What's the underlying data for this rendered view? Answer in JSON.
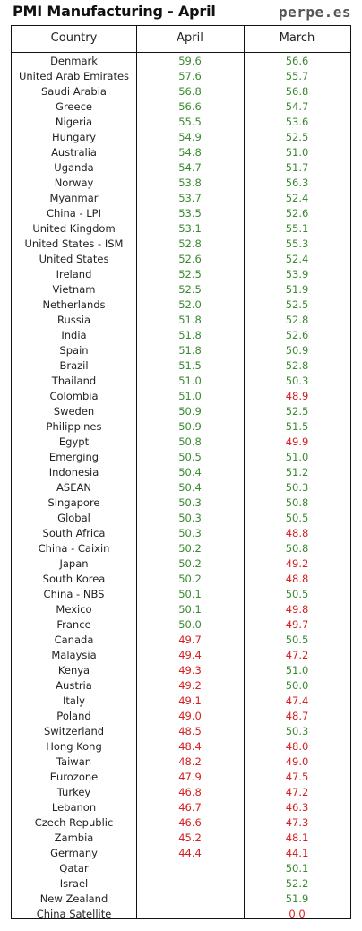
{
  "title": "PMI Manufacturing - April",
  "brand": "perpe.es",
  "colors": {
    "expansion": "#3a8a30",
    "contraction": "#d42020"
  },
  "headers": {
    "country": "Country",
    "april": "April",
    "march": "March"
  },
  "rows": [
    {
      "country": "Denmark",
      "april": "59.6",
      "march": "56.6"
    },
    {
      "country": "United Arab Emirates",
      "april": "57.6",
      "march": "55.7"
    },
    {
      "country": "Saudi Arabia",
      "april": "56.8",
      "march": "56.8"
    },
    {
      "country": "Greece",
      "april": "56.6",
      "march": "54.7"
    },
    {
      "country": "Nigeria",
      "april": "55.5",
      "march": "53.6"
    },
    {
      "country": "Hungary",
      "april": "54.9",
      "march": "52.5"
    },
    {
      "country": "Australia",
      "april": "54.8",
      "march": "51.0"
    },
    {
      "country": "Uganda",
      "april": "54.7",
      "march": "51.7"
    },
    {
      "country": "Norway",
      "april": "53.8",
      "march": "56.3"
    },
    {
      "country": "Myanmar",
      "april": "53.7",
      "march": "52.4"
    },
    {
      "country": "China - LPI",
      "april": "53.5",
      "march": "52.6"
    },
    {
      "country": "United Kingdom",
      "april": "53.1",
      "march": "55.1"
    },
    {
      "country": "United States - ISM",
      "april": "52.8",
      "march": "55.3"
    },
    {
      "country": "United States",
      "april": "52.6",
      "march": "52.4"
    },
    {
      "country": "Ireland",
      "april": "52.5",
      "march": "53.9"
    },
    {
      "country": "Vietnam",
      "april": "52.5",
      "march": "51.9"
    },
    {
      "country": "Netherlands",
      "april": "52.0",
      "march": "52.5"
    },
    {
      "country": "Russia",
      "april": "51.8",
      "march": "52.8"
    },
    {
      "country": "India",
      "april": "51.8",
      "march": "52.6"
    },
    {
      "country": "Spain",
      "april": "51.8",
      "march": "50.9"
    },
    {
      "country": "Brazil",
      "april": "51.5",
      "march": "52.8"
    },
    {
      "country": "Thailand",
      "april": "51.0",
      "march": "50.3"
    },
    {
      "country": "Colombia",
      "april": "51.0",
      "march": "48.9"
    },
    {
      "country": "Sweden",
      "april": "50.9",
      "march": "52.5"
    },
    {
      "country": "Philippines",
      "april": "50.9",
      "march": "51.5"
    },
    {
      "country": "Egypt",
      "april": "50.8",
      "march": "49.9"
    },
    {
      "country": "Emerging",
      "april": "50.5",
      "march": "51.0"
    },
    {
      "country": "Indonesia",
      "april": "50.4",
      "march": "51.2"
    },
    {
      "country": "ASEAN",
      "april": "50.4",
      "march": "50.3"
    },
    {
      "country": "Singapore",
      "april": "50.3",
      "march": "50.8"
    },
    {
      "country": "Global",
      "april": "50.3",
      "march": "50.5"
    },
    {
      "country": "South Africa",
      "april": "50.3",
      "march": "48.8"
    },
    {
      "country": "China - Caixin",
      "april": "50.2",
      "march": "50.8"
    },
    {
      "country": "Japan",
      "april": "50.2",
      "march": "49.2"
    },
    {
      "country": "South Korea",
      "april": "50.2",
      "march": "48.8"
    },
    {
      "country": "China - NBS",
      "april": "50.1",
      "march": "50.5"
    },
    {
      "country": "Mexico",
      "april": "50.1",
      "march": "49.8"
    },
    {
      "country": "France",
      "april": "50.0",
      "march": "49.7"
    },
    {
      "country": "Canada",
      "april": "49.7",
      "march": "50.5"
    },
    {
      "country": "Malaysia",
      "april": "49.4",
      "march": "47.2"
    },
    {
      "country": "Kenya",
      "april": "49.3",
      "march": "51.0"
    },
    {
      "country": "Austria",
      "april": "49.2",
      "march": "50.0"
    },
    {
      "country": "Italy",
      "april": "49.1",
      "march": "47.4"
    },
    {
      "country": "Poland",
      "april": "49.0",
      "march": "48.7"
    },
    {
      "country": "Switzerland",
      "april": "48.5",
      "march": "50.3"
    },
    {
      "country": "Hong Kong",
      "april": "48.4",
      "march": "48.0"
    },
    {
      "country": "Taiwan",
      "april": "48.2",
      "march": "49.0"
    },
    {
      "country": "Eurozone",
      "april": "47.9",
      "march": "47.5"
    },
    {
      "country": "Turkey",
      "april": "46.8",
      "march": "47.2"
    },
    {
      "country": "Lebanon",
      "april": "46.7",
      "march": "46.3"
    },
    {
      "country": "Czech Republic",
      "april": "46.6",
      "march": "47.3"
    },
    {
      "country": "Zambia",
      "april": "45.2",
      "march": "48.1"
    },
    {
      "country": "Germany",
      "april": "44.4",
      "march": "44.1"
    },
    {
      "country": "Qatar",
      "april": "",
      "march": "50.1"
    },
    {
      "country": "Israel",
      "april": "",
      "march": "52.2"
    },
    {
      "country": "New Zealand",
      "april": "",
      "march": "51.9"
    },
    {
      "country": "China Satellite",
      "april": "",
      "march": "0.0"
    }
  ]
}
